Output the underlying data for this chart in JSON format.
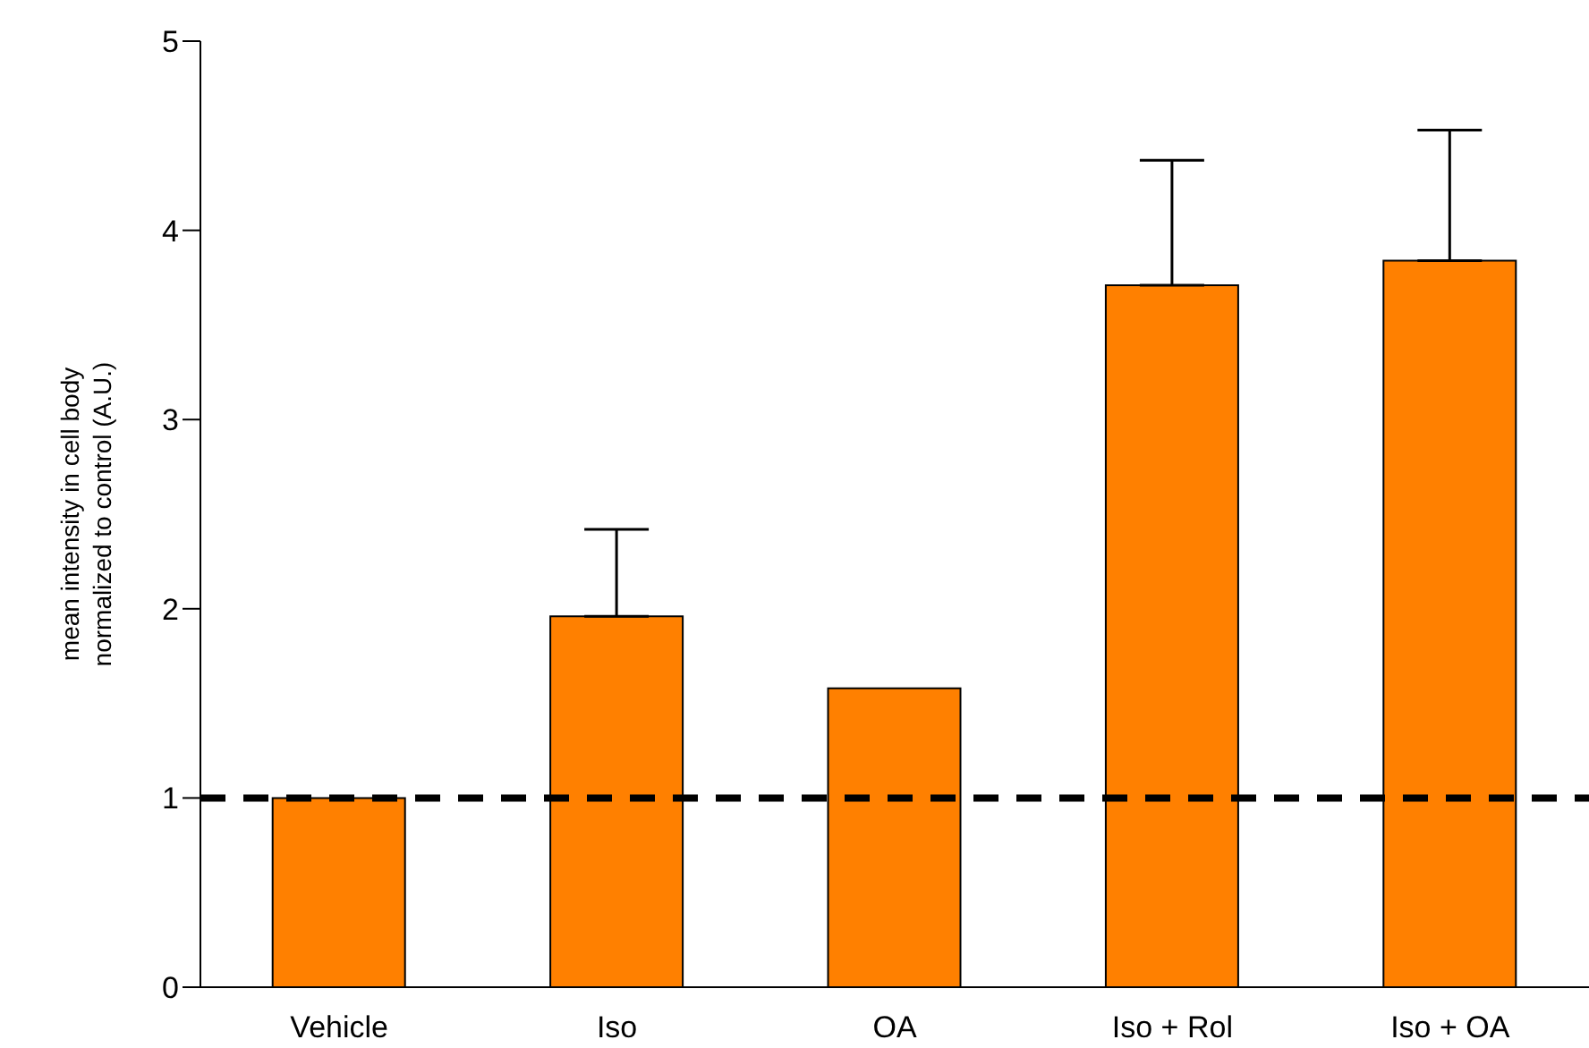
{
  "chart_data": {
    "type": "bar",
    "ylabel": "mean intensity in cell body normalized to control (A.U.)",
    "categories": [
      "Vehicle",
      "Iso",
      "OA",
      "Iso + Rol",
      "Iso + OA"
    ],
    "values": [
      1.0,
      1.96,
      1.58,
      3.71,
      3.84
    ],
    "errors": [
      null,
      [
        1.96,
        2.42
      ],
      null,
      [
        3.71,
        4.37
      ],
      [
        3.84,
        4.53
      ]
    ],
    "color": "#ff8000",
    "ylim": [
      0,
      5
    ],
    "yticks": [
      0,
      1,
      2,
      3,
      4,
      5
    ],
    "grid": false,
    "ref_lines": [
      {
        "axis": "y",
        "value": 1,
        "color": "#000000",
        "line_style": "dashed"
      }
    ]
  }
}
